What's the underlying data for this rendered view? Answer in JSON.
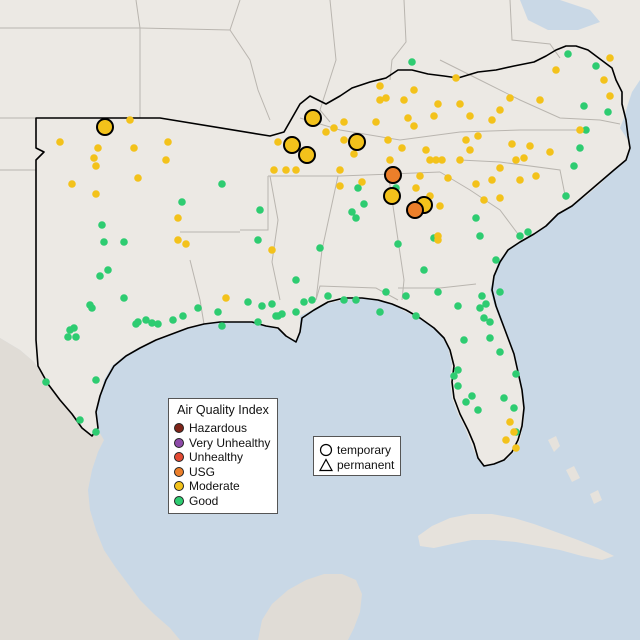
{
  "legend": {
    "title": "Air Quality Index",
    "categories": [
      {
        "label": "Hazardous",
        "color": "#7e2418"
      },
      {
        "label": "Very Unhealthy",
        "color": "#8d4aa8"
      },
      {
        "label": "Unhealthy",
        "color": "#e34a33"
      },
      {
        "label": "USG",
        "color": "#ec7f2a"
      },
      {
        "label": "Moderate",
        "color": "#f3c21b"
      },
      {
        "label": "Good",
        "color": "#2ecc71"
      }
    ]
  },
  "site_types": {
    "temporary": "temporary",
    "permanent": "permanent"
  },
  "colors": {
    "water": "#c9d8e6",
    "land": "#ece9e4",
    "mexico_land": "#e0dcd6",
    "state_line": "#b9b5af",
    "region_outline": "#000000"
  }
}
